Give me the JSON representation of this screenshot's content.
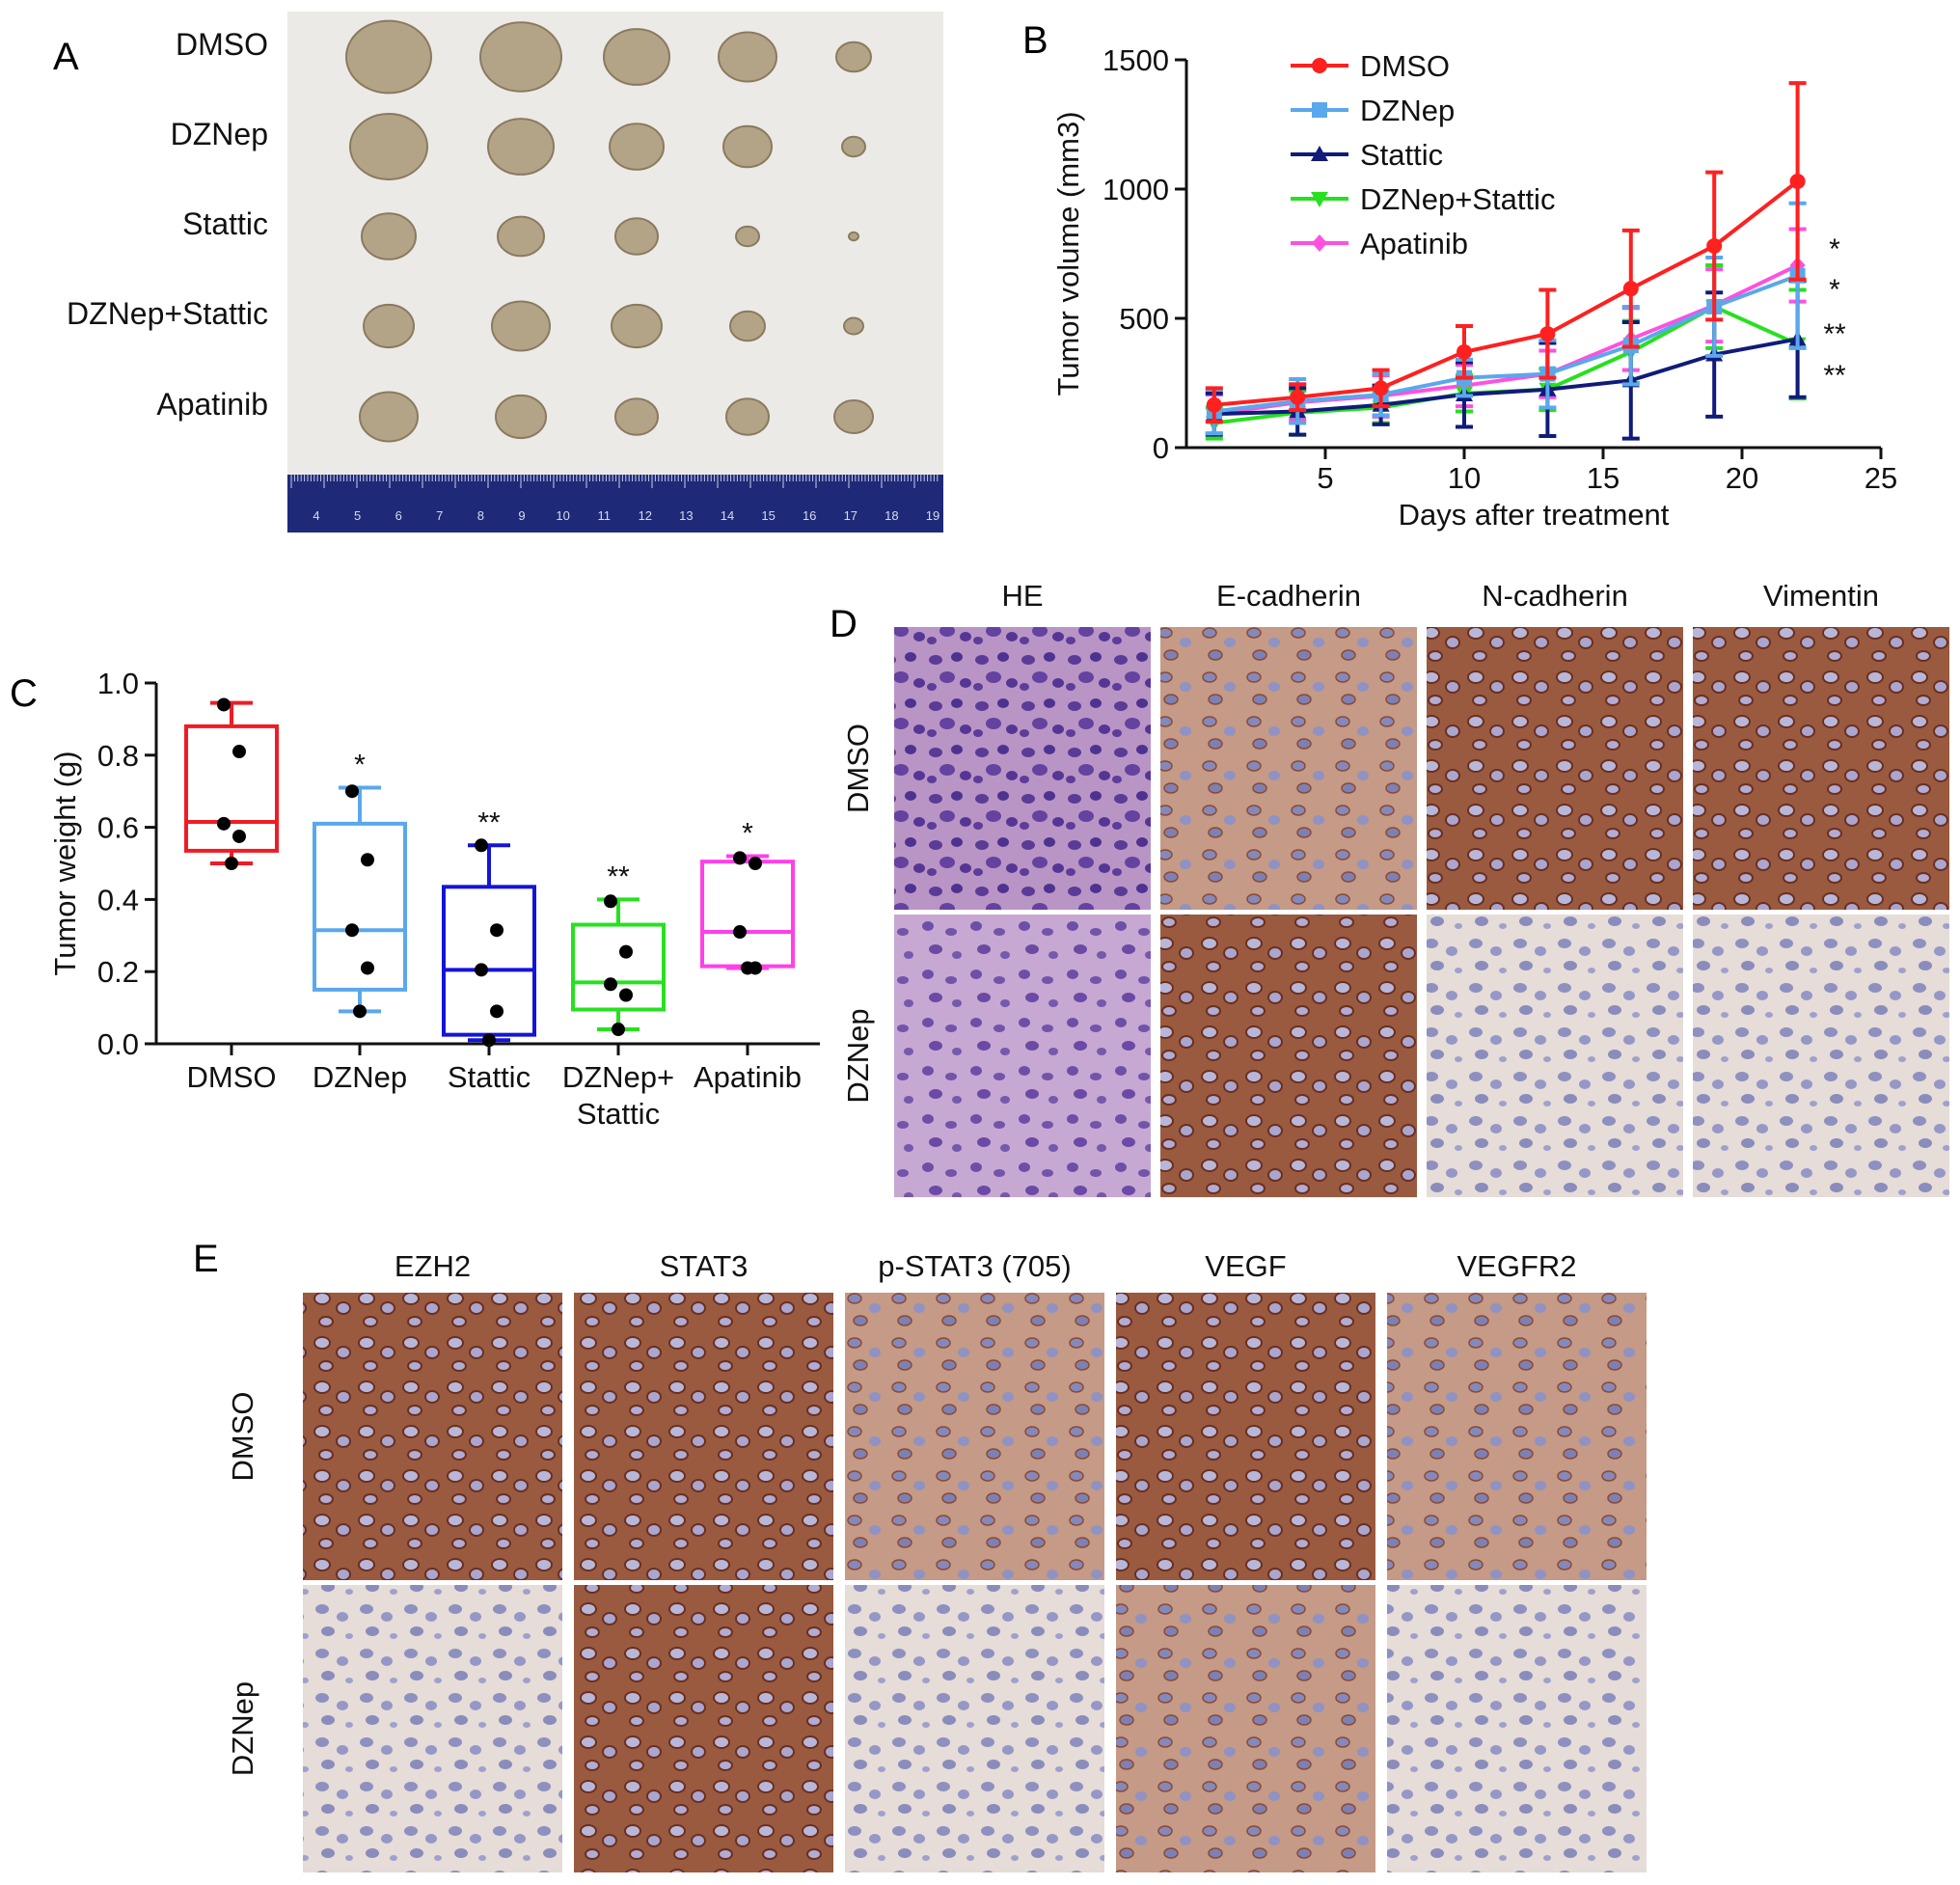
{
  "panel_labels": {
    "a": "A",
    "b": "B",
    "c": "C",
    "d": "D",
    "e": "E"
  },
  "panel_a": {
    "rows": [
      "DMSO",
      "DZNep",
      "Stattic",
      "DZNep+Stattic",
      "Apatinib"
    ],
    "ruler_ticks": [
      "4",
      "5",
      "6",
      "7",
      "8",
      "9",
      "10",
      "11",
      "12",
      "13",
      "14",
      "15",
      "16",
      "17",
      "18",
      "19"
    ]
  },
  "panel_d": {
    "columns": [
      "HE",
      "E-cadherin",
      "N-cadherin",
      "Vimentin"
    ],
    "rows": [
      "DMSO",
      "DZNep"
    ]
  },
  "panel_e": {
    "columns": [
      "EZH2",
      "STAT3",
      "p-STAT3 (705)",
      "VEGF",
      "VEGFR2"
    ],
    "rows": [
      "DMSO",
      "DZNep"
    ]
  },
  "chart_data": [
    {
      "panel": "B",
      "type": "line",
      "xlabel": "Days after treatment",
      "ylabel": "Tumor volume (mm3)",
      "xlim": [
        0,
        25
      ],
      "ylim": [
        0,
        1500
      ],
      "xticks": [
        5,
        10,
        15,
        20,
        25
      ],
      "yticks": [
        0,
        500,
        1000,
        1500
      ],
      "legend": "top-left",
      "x": [
        1,
        4,
        7,
        10,
        13,
        16,
        19,
        22
      ],
      "series": [
        {
          "name": "DMSO",
          "color": "#ff2020",
          "marker": "circle",
          "values": [
            165,
            195,
            230,
            370,
            440,
            615,
            780,
            1030
          ],
          "error": [
            65,
            50,
            70,
            100,
            170,
            225,
            285,
            380
          ]
        },
        {
          "name": "DZNep",
          "color": "#5aa8ec",
          "marker": "square",
          "values": [
            140,
            180,
            205,
            270,
            285,
            395,
            545,
            665
          ],
          "error": [
            85,
            85,
            80,
            70,
            130,
            150,
            190,
            280
          ]
        },
        {
          "name": "Stattic",
          "color": "#101b7a",
          "marker": "triangle",
          "values": [
            130,
            140,
            165,
            205,
            225,
            260,
            360,
            420
          ],
          "error": [
            80,
            90,
            75,
            125,
            180,
            225,
            240,
            225
          ]
        },
        {
          "name": "DZNep+Stattic",
          "color": "#27e020",
          "marker": "triangle-down",
          "values": [
            95,
            135,
            155,
            210,
            225,
            370,
            545,
            400
          ],
          "error": [
            60,
            85,
            60,
            70,
            80,
            120,
            160,
            210
          ]
        },
        {
          "name": "Apatinib",
          "color": "#ff50e0",
          "marker": "diamond",
          "values": [
            130,
            175,
            200,
            240,
            285,
            420,
            550,
            705
          ],
          "error": [
            75,
            70,
            80,
            80,
            90,
            120,
            140,
            140
          ]
        }
      ],
      "annotations": [
        "*",
        "*",
        "**",
        "**"
      ]
    },
    {
      "panel": "C",
      "type": "box",
      "ylabel": "Tumor weight (g)",
      "ylim": [
        0,
        1.0
      ],
      "yticks": [
        "0.0",
        "0.2",
        "0.4",
        "0.6",
        "0.8",
        "1.0"
      ],
      "categories": [
        "DMSO",
        "DZNep",
        "Stattic",
        "DZNep+\nStattic",
        "Apatinib"
      ],
      "series": [
        {
          "name": "DMSO",
          "color": "#ee1c24",
          "min": 0.5,
          "q1": 0.535,
          "median": 0.615,
          "q3": 0.88,
          "max": 0.945,
          "points": [
            0.94,
            0.81,
            0.61,
            0.575,
            0.5
          ],
          "sig": ""
        },
        {
          "name": "DZNep",
          "color": "#5aa8ec",
          "min": 0.09,
          "q1": 0.15,
          "median": 0.315,
          "q3": 0.61,
          "max": 0.71,
          "points": [
            0.7,
            0.51,
            0.315,
            0.21,
            0.09
          ],
          "sig": "*"
        },
        {
          "name": "Stattic",
          "color": "#1414d8",
          "min": 0.01,
          "q1": 0.025,
          "median": 0.205,
          "q3": 0.435,
          "max": 0.55,
          "points": [
            0.55,
            0.315,
            0.205,
            0.09,
            0.01
          ],
          "sig": "**"
        },
        {
          "name": "DZNep+Stattic",
          "color": "#27e020",
          "min": 0.04,
          "q1": 0.095,
          "median": 0.17,
          "q3": 0.33,
          "max": 0.4,
          "points": [
            0.395,
            0.255,
            0.165,
            0.135,
            0.04
          ],
          "sig": "**"
        },
        {
          "name": "Apatinib",
          "color": "#ff40e8",
          "min": 0.21,
          "q1": 0.215,
          "median": 0.31,
          "q3": 0.505,
          "max": 0.52,
          "points": [
            0.515,
            0.5,
            0.31,
            0.21,
            0.21
          ],
          "sig": "*"
        }
      ]
    }
  ]
}
